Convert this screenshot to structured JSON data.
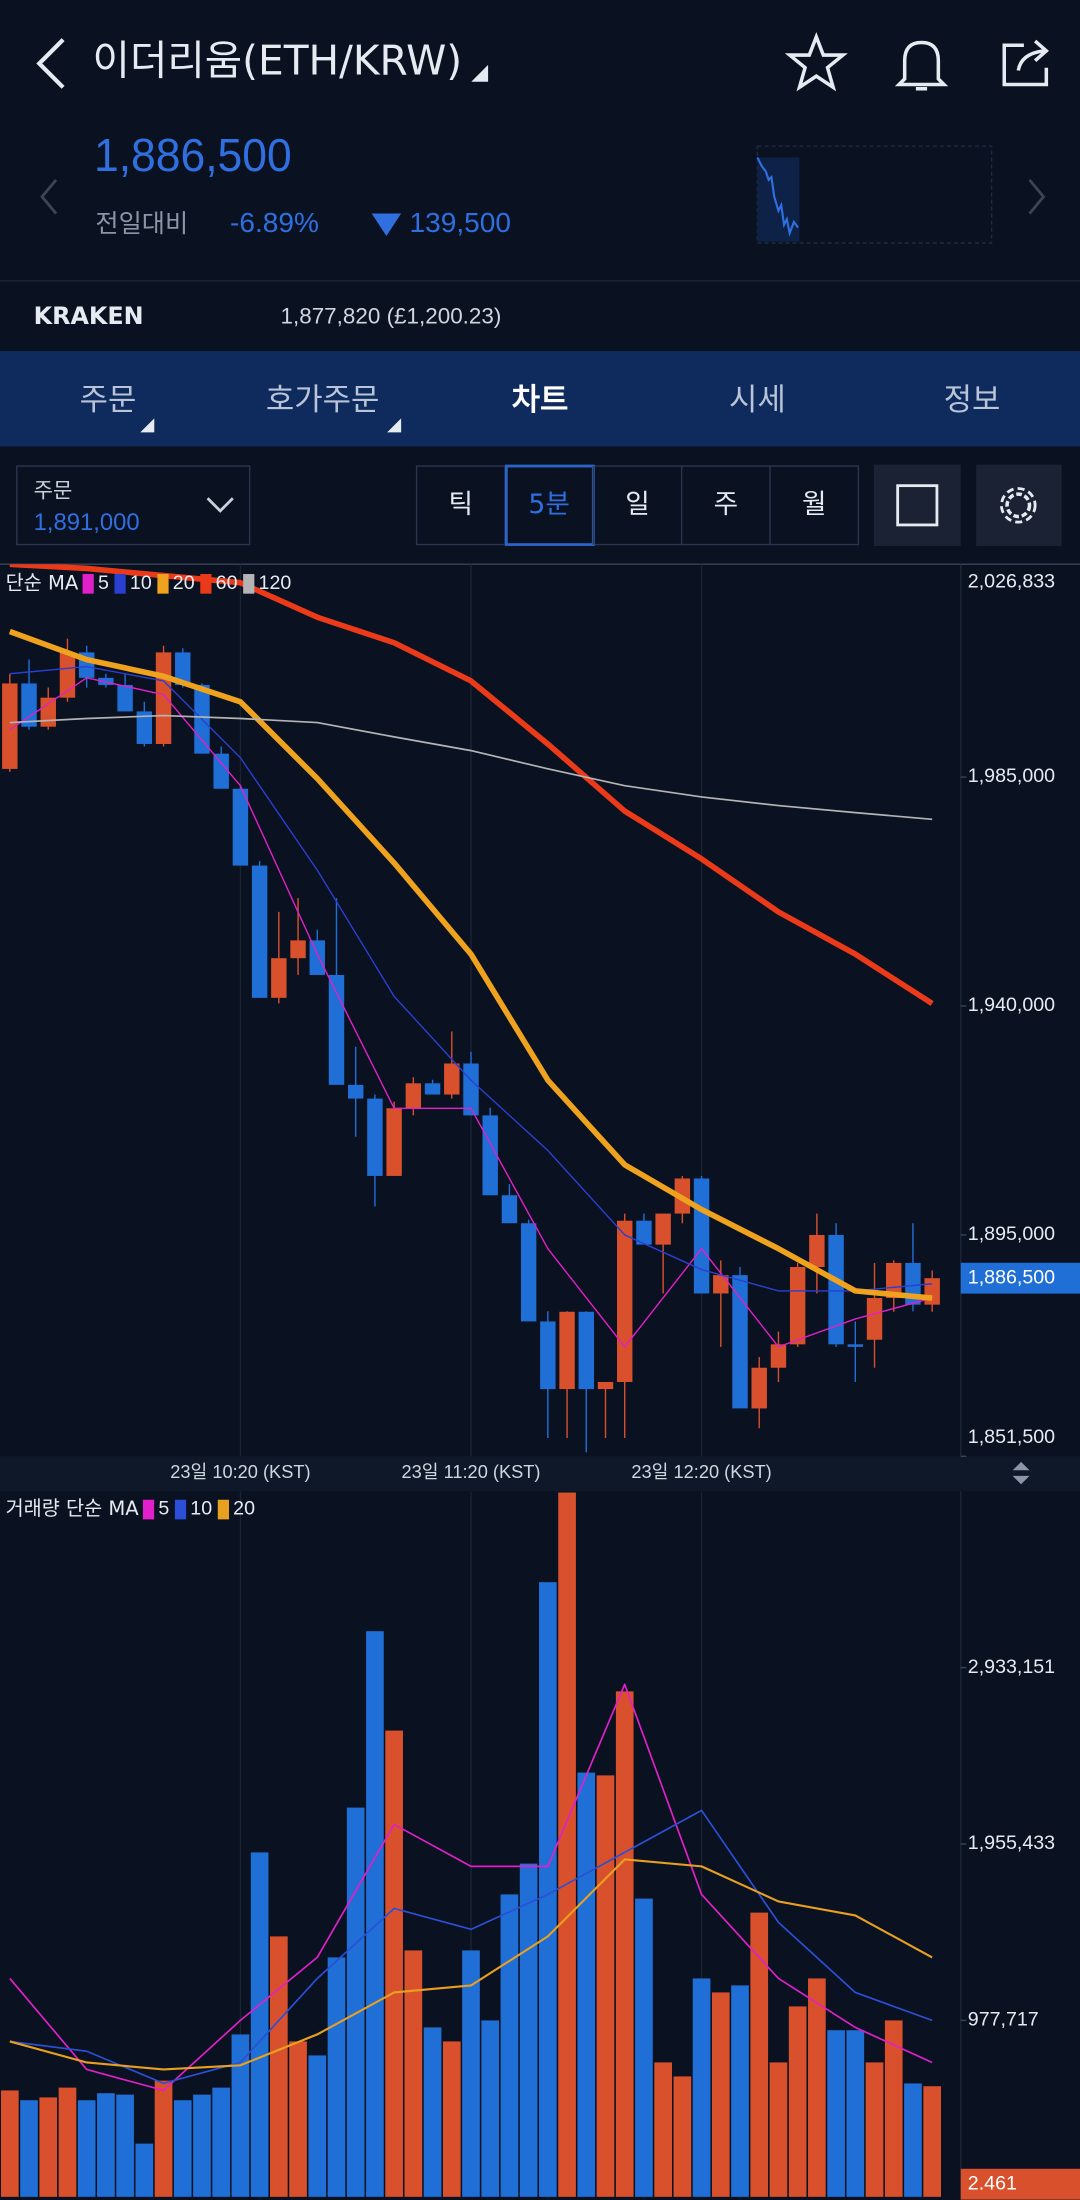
{
  "header": {
    "title": "이더리움(ETH/KRW)",
    "price": "1,886,500",
    "change_label": "전일대비",
    "change_percent": "-6.89%",
    "change_amount": "139,500"
  },
  "exchange": {
    "name": "KRAKEN",
    "price": "1,877,820 (£1,200.23)"
  },
  "tabs": [
    "주문",
    "호가주문",
    "차트",
    "시세",
    "정보"
  ],
  "active_tab": 2,
  "order": {
    "label": "주문",
    "price": "1,891,000"
  },
  "periods": [
    "틱",
    "5분",
    "일",
    "주",
    "월"
  ],
  "active_period": 1,
  "chart_data": [
    {
      "type": "candlestick",
      "legend_title": "단순 MA",
      "categories": [
        null,
        null,
        null,
        null,
        null,
        null,
        null,
        null,
        null,
        null,
        null,
        null,
        "23일 10:20 (KST)",
        null,
        null,
        null,
        null,
        null,
        null,
        null,
        null,
        null,
        null,
        null,
        "23일 11:20 (KST)",
        null,
        null,
        null,
        null,
        null,
        null,
        null,
        null,
        null,
        null,
        null,
        "23일 12:20 (KST)",
        null,
        null,
        null,
        null,
        null,
        null,
        null,
        null,
        null,
        null,
        null,
        null
      ],
      "candles": {
        "open": [
          1986600,
          2003400,
          1994900,
          2000600,
          2009500,
          2004500,
          2003100,
          1997900,
          1991500,
          2009500,
          2003100,
          1989600,
          1982700,
          1967600,
          1941600,
          1949400,
          1952900,
          1946100,
          1924500,
          1921800,
          1906600,
          1919900,
          1924800,
          1922600,
          1928700,
          1918500,
          1902800,
          1897300,
          1878000,
          1864700,
          1879900,
          1864700,
          1866100,
          1897800,
          1893100,
          1899200,
          1906100,
          1883500,
          1887100,
          1860900,
          1868900,
          1873500,
          1888700,
          1895000,
          1873500,
          1874400,
          1882600,
          1889500,
          1881300
        ],
        "high": [
          2005300,
          2008100,
          2002600,
          2012200,
          2010800,
          2005300,
          2005300,
          1999800,
          2010800,
          2010300,
          2003400,
          1991000,
          1983500,
          1968500,
          1958500,
          1961200,
          1955000,
          1961200,
          1932000,
          1922600,
          1921200,
          1926000,
          1925500,
          1935000,
          1931000,
          1920000,
          1905000,
          1898000,
          1880000,
          1880000,
          1880000,
          1866100,
          1899200,
          1899200,
          1899200,
          1906600,
          1906600,
          1890000,
          1888700,
          1871000,
          1876000,
          1889500,
          1899200,
          1897300,
          1878000,
          1889500,
          1890000,
          1897300,
          1888000
        ],
        "low": [
          1986000,
          1994300,
          1994300,
          1999800,
          2002600,
          2002600,
          1997900,
          1991000,
          1991000,
          2002600,
          1989600,
          1982700,
          1967600,
          1941600,
          1940500,
          1946100,
          1946100,
          1924500,
          1914300,
          1900600,
          1906600,
          1918500,
          1922600,
          1921800,
          1918500,
          1902800,
          1897300,
          1878000,
          1855100,
          1855100,
          1852300,
          1855100,
          1855100,
          1893100,
          1883500,
          1897300,
          1883500,
          1873000,
          1860900,
          1857000,
          1866100,
          1873000,
          1883500,
          1873000,
          1866100,
          1868900,
          1879900,
          1880000,
          1879900
        ],
        "close": [
          2003400,
          1994900,
          2000600,
          2009500,
          2004500,
          2003100,
          1997900,
          1991500,
          2009500,
          2003100,
          1989600,
          1982700,
          1967600,
          1941600,
          1949400,
          1952900,
          1946100,
          1924500,
          1921800,
          1906600,
          1919900,
          1924800,
          1922600,
          1928700,
          1918500,
          1902800,
          1897300,
          1878000,
          1864700,
          1879900,
          1864700,
          1866100,
          1897800,
          1893100,
          1899200,
          1906100,
          1883500,
          1887100,
          1860900,
          1868900,
          1873500,
          1888700,
          1895000,
          1873500,
          1873000,
          1882600,
          1889500,
          1881300,
          1886500
        ]
      },
      "up_color": "#d9512c",
      "down_color": "#1f6fd6",
      "series": [
        {
          "name": "5",
          "color": "#e020c8",
          "x": [
            0,
            4,
            8,
            12,
            16,
            20,
            24,
            28,
            32,
            36,
            40,
            44,
            48
          ],
          "values": [
            1994300,
            2004500,
            2001200,
            1983300,
            1950200,
            1919900,
            1919900,
            1892300,
            1873000,
            1892300,
            1873000,
            1878500,
            1882600
          ]
        },
        {
          "name": "10",
          "color": "#2b3fd0",
          "x": [
            0,
            4,
            8,
            12,
            16,
            20,
            24,
            28,
            32,
            36,
            40,
            44,
            48
          ],
          "values": [
            2005300,
            2006700,
            2003900,
            1988800,
            1966700,
            1941900,
            1925400,
            1911600,
            1895000,
            1888200,
            1884000,
            1884000,
            1885400
          ]
        },
        {
          "name": "20",
          "color": "#eea21e",
          "x": [
            0,
            4,
            8,
            12,
            16,
            20,
            24,
            28,
            32,
            36,
            40,
            44,
            48
          ],
          "values": [
            2013600,
            2008100,
            2004800,
            1999800,
            1984700,
            1968100,
            1950200,
            1925400,
            1908800,
            1900000,
            1892300,
            1884000,
            1882600
          ]
        },
        {
          "name": "60",
          "color": "#ea3a1a",
          "x": [
            0,
            4,
            8,
            12,
            16,
            20,
            24,
            28,
            32,
            36,
            40,
            44,
            48
          ],
          "values": [
            2026800,
            2026000,
            2024600,
            2023200,
            2016400,
            2011400,
            2003900,
            1991500,
            1978300,
            1968900,
            1958500,
            1950200,
            1940500
          ]
        },
        {
          "name": "120",
          "color": "#b4b4b4",
          "x": [
            0,
            4,
            8,
            12,
            16,
            20,
            24,
            28,
            32,
            36,
            40,
            44,
            48
          ],
          "values": [
            1995700,
            1996500,
            1997100,
            1996500,
            1995700,
            1992900,
            1990200,
            1986600,
            1983300,
            1981100,
            1979400,
            1978000,
            1976700
          ]
        }
      ],
      "ylim": [
        1851500,
        2026833
      ],
      "yticks": [
        {
          "value": 1851500,
          "label": "1,851,500"
        },
        {
          "value": 1895000,
          "label": "1,895,000"
        },
        {
          "value": 1940000,
          "label": "1,940,000"
        },
        {
          "value": 1985000,
          "label": "1,985,000"
        },
        {
          "value": 2026833,
          "label": "2,026,833"
        }
      ],
      "current": {
        "value": 1886500,
        "label": "1,886,500"
      },
      "current_color": "#1f6fd6"
    },
    {
      "type": "bar",
      "legend_title": "거래량 단순 MA",
      "values": [
        589700,
        535400,
        550900,
        605300,
        535400,
        574200,
        566500,
        294900,
        644000,
        535400,
        566500,
        605300,
        900100,
        1908900,
        1443300,
        861300,
        783700,
        1326900,
        2157200,
        3134900,
        2584000,
        1365700,
        938900,
        861300,
        1365700,
        977700,
        1676100,
        1846800,
        3406500,
        3903100,
        2351200,
        2335700,
        2801300,
        1652800,
        744900,
        667300,
        1210500,
        1132900,
        1171700,
        1575200,
        744900,
        1055300,
        1210500,
        923400,
        923400,
        744900,
        977700,
        628500,
        613000
      ],
      "series": [
        {
          "name": "5",
          "color": "#e020c8",
          "x": [
            0,
            4,
            8,
            12,
            16,
            20,
            24,
            28,
            32,
            36,
            40,
            44,
            48
          ],
          "values": [
            1210500,
            706100,
            589700,
            977700,
            1326900,
            2064100,
            1831300,
            1831300,
            2840000,
            1676100,
            1210500,
            938900,
            744900
          ]
        },
        {
          "name": "10",
          "color": "#2b4fd6",
          "x": [
            0,
            4,
            8,
            12,
            16,
            20,
            24,
            28,
            32,
            36,
            40,
            44,
            48
          ],
          "values": [
            861300,
            807000,
            628500,
            744900,
            1210500,
            1598500,
            1482100,
            1676100,
            1908900,
            2141700,
            1520900,
            1132900,
            977700
          ]
        },
        {
          "name": "20",
          "color": "#e8a020",
          "x": [
            0,
            4,
            8,
            12,
            16,
            20,
            24,
            28,
            32,
            36,
            40,
            44,
            48
          ],
          "values": [
            861300,
            744900,
            706100,
            729400,
            900100,
            1132900,
            1171700,
            1443300,
            1870100,
            1831300,
            1637300,
            1559700,
            1326900
          ]
        }
      ],
      "ylim": [
        0,
        3910000
      ],
      "yticks": [
        {
          "value": 977717,
          "label": "977,717"
        },
        {
          "value": 1955433,
          "label": "1,955,433"
        },
        {
          "value": 2933151,
          "label": "2,933,151"
        }
      ],
      "current": {
        "value": 2.461,
        "label": "2.461"
      },
      "current_color": "#d9512c"
    }
  ]
}
